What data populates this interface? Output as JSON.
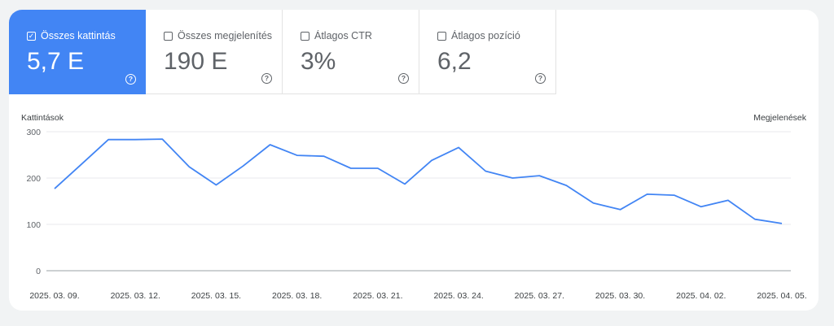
{
  "metrics": [
    {
      "label": "Összes kattintás",
      "value": "5,7 E",
      "checked": true
    },
    {
      "label": "Összes megjelenítés",
      "value": "190 E",
      "checked": false
    },
    {
      "label": "Átlagos CTR",
      "value": "3%",
      "checked": false
    },
    {
      "label": "Átlagos pozíció",
      "value": "6,2",
      "checked": false
    }
  ],
  "help_glyph": "?",
  "check_glyph": "✓",
  "chart_data": {
    "type": "line",
    "ylabel": "Kattintások",
    "y2label": "Megjelenések",
    "ylim": [
      0,
      300
    ],
    "yticks": [
      0,
      100,
      200,
      300
    ],
    "xtick_labels": [
      "2025. 03. 09.",
      "2025. 03. 12.",
      "2025. 03. 15.",
      "2025. 03. 18.",
      "2025. 03. 21.",
      "2025. 03. 24.",
      "2025. 03. 27.",
      "2025. 03. 30.",
      "2025. 04. 02.",
      "2025. 04. 05."
    ],
    "series": [
      {
        "color": "#4285f4",
        "x": [
          "2025-03-09",
          "2025-03-10",
          "2025-03-11",
          "2025-03-12",
          "2025-03-13",
          "2025-03-14",
          "2025-03-15",
          "2025-03-16",
          "2025-03-17",
          "2025-03-18",
          "2025-03-19",
          "2025-03-20",
          "2025-03-21",
          "2025-03-22",
          "2025-03-23",
          "2025-03-24",
          "2025-03-25",
          "2025-03-26",
          "2025-03-27",
          "2025-03-28",
          "2025-03-29",
          "2025-03-30",
          "2025-03-31",
          "2025-04-01",
          "2025-04-02",
          "2025-04-03",
          "2025-04-04",
          "2025-04-05"
        ],
        "values": [
          177,
          230,
          283,
          283,
          284,
          224,
          185,
          226,
          272,
          249,
          247,
          221,
          221,
          187,
          238,
          266,
          215,
          200,
          205,
          184,
          146,
          132,
          165,
          163,
          138,
          152,
          111,
          102
        ]
      }
    ]
  }
}
